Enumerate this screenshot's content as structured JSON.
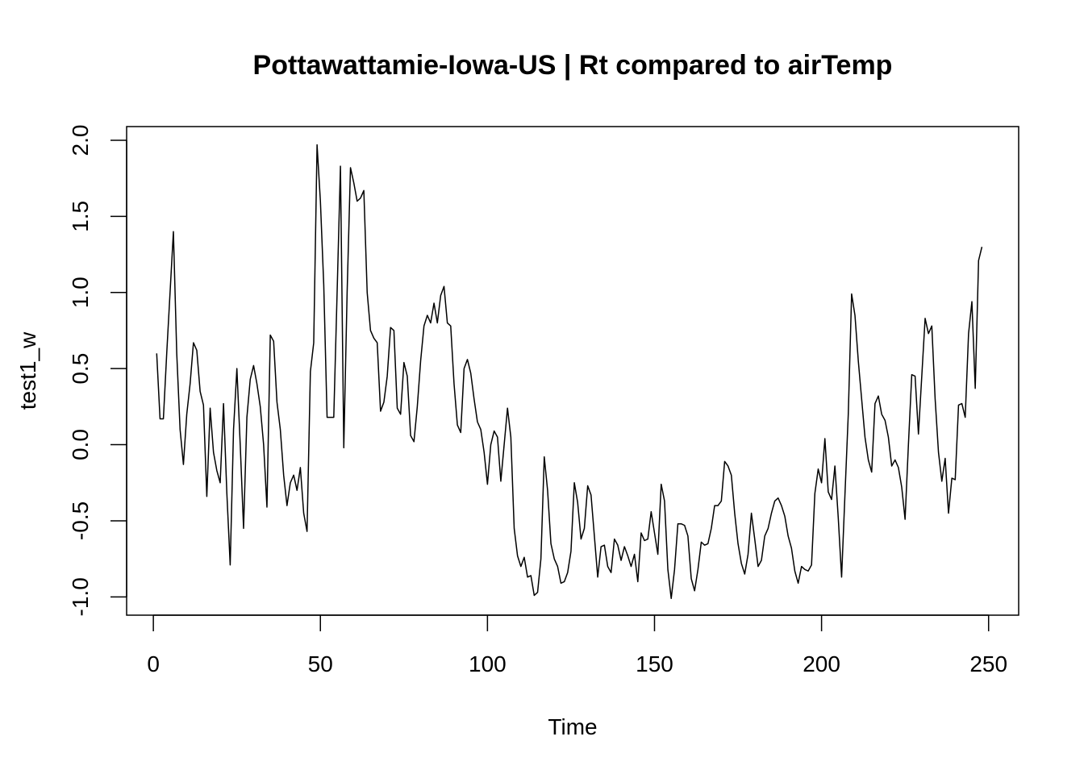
{
  "chart_data": {
    "type": "line",
    "title": "Pottawattamie-Iowa-US | Rt compared to airTemp",
    "xlabel": "Time",
    "ylabel": "test1_w",
    "xlim": [
      -8,
      259
    ],
    "ylim": [
      -1.12,
      2.09
    ],
    "xticks": [
      0,
      50,
      100,
      150,
      200,
      250
    ],
    "xtick_labels": [
      "0",
      "50",
      "100",
      "150",
      "200",
      "250"
    ],
    "yticks": [
      -1.0,
      -0.5,
      0.0,
      0.5,
      1.0,
      1.5,
      2.0
    ],
    "ytick_labels": [
      "-1.0",
      "-0.5",
      "0.0",
      "0.5",
      "1.0",
      "1.5",
      "2.0"
    ],
    "grid": false,
    "line_color": "#000000",
    "series": [
      {
        "x": [
          1,
          2,
          3,
          4,
          5,
          6,
          7,
          8,
          9,
          10,
          11,
          12,
          13,
          14,
          15,
          16,
          17,
          18,
          19,
          20,
          21,
          22,
          23,
          24,
          25,
          26,
          27,
          28,
          29,
          30,
          31,
          32,
          33,
          34,
          35,
          36,
          37,
          38,
          39,
          40,
          41,
          42,
          43,
          44,
          45,
          46,
          47,
          48,
          49,
          50,
          51,
          52,
          53,
          54,
          55,
          56,
          57,
          58,
          59,
          60,
          61,
          62,
          63,
          64,
          65,
          66,
          67,
          68,
          69,
          70,
          71,
          72,
          73,
          74,
          75,
          76,
          77,
          78,
          79,
          80,
          81,
          82,
          83,
          84,
          85,
          86,
          87,
          88,
          89,
          90,
          91,
          92,
          93,
          94,
          95,
          96,
          97,
          98,
          99,
          100,
          101,
          102,
          103,
          104,
          105,
          106,
          107,
          108,
          109,
          110,
          111,
          112,
          113,
          114,
          115,
          116,
          117,
          118,
          119,
          120,
          121,
          122,
          123,
          124,
          125,
          126,
          127,
          128,
          129,
          130,
          131,
          132,
          133,
          134,
          135,
          136,
          137,
          138,
          139,
          140,
          141,
          142,
          143,
          144,
          145,
          146,
          147,
          148,
          149,
          150,
          151,
          152,
          153,
          154,
          155,
          156,
          157,
          158,
          159,
          160,
          161,
          162,
          163,
          164,
          165,
          166,
          167,
          168,
          169,
          170,
          171,
          172,
          173,
          174,
          175,
          176,
          177,
          178,
          179,
          180,
          181,
          182,
          183,
          184,
          185,
          186,
          187,
          188,
          189,
          190,
          191,
          192,
          193,
          194,
          195,
          196,
          197,
          198,
          199,
          200,
          201,
          202,
          203,
          204,
          205,
          206,
          207,
          208,
          209,
          210,
          211,
          212,
          213,
          214,
          215,
          216,
          217,
          218,
          219,
          220,
          221,
          222,
          223,
          224,
          225,
          226,
          227,
          228,
          229,
          230,
          231,
          232,
          233,
          234,
          235,
          236,
          237,
          238,
          239,
          240,
          241,
          242,
          243,
          244,
          245,
          246,
          247,
          248
        ],
        "y": [
          0.6,
          0.17,
          0.17,
          0.6,
          1.0,
          1.4,
          0.6,
          0.1,
          -0.13,
          0.2,
          0.4,
          0.67,
          0.62,
          0.35,
          0.26,
          -0.34,
          0.24,
          -0.05,
          -0.17,
          -0.25,
          0.27,
          -0.32,
          -0.79,
          0.1,
          0.5,
          0.0,
          -0.55,
          0.18,
          0.43,
          0.52,
          0.4,
          0.25,
          0.0,
          -0.41,
          0.72,
          0.68,
          0.28,
          0.1,
          -0.2,
          -0.4,
          -0.25,
          -0.2,
          -0.3,
          -0.15,
          -0.45,
          -0.57,
          0.48,
          0.67,
          1.97,
          1.6,
          1.05,
          0.18,
          0.18,
          0.18,
          1.0,
          1.83,
          -0.02,
          1.0,
          1.82,
          1.72,
          1.6,
          1.62,
          1.67,
          1.0,
          0.75,
          0.7,
          0.67,
          0.22,
          0.28,
          0.45,
          0.77,
          0.75,
          0.24,
          0.2,
          0.54,
          0.45,
          0.06,
          0.02,
          0.25,
          0.55,
          0.78,
          0.85,
          0.8,
          0.93,
          0.8,
          0.98,
          1.04,
          0.8,
          0.78,
          0.4,
          0.13,
          0.08,
          0.5,
          0.56,
          0.47,
          0.3,
          0.15,
          0.1,
          -0.05,
          -0.26,
          0.0,
          0.09,
          0.05,
          -0.24,
          0.0,
          0.24,
          0.05,
          -0.55,
          -0.73,
          -0.8,
          -0.74,
          -0.87,
          -0.86,
          -0.99,
          -0.97,
          -0.75,
          -0.08,
          -0.3,
          -0.65,
          -0.75,
          -0.8,
          -0.91,
          -0.9,
          -0.84,
          -0.7,
          -0.25,
          -0.38,
          -0.62,
          -0.55,
          -0.27,
          -0.33,
          -0.6,
          -0.87,
          -0.67,
          -0.66,
          -0.8,
          -0.84,
          -0.62,
          -0.66,
          -0.76,
          -0.67,
          -0.73,
          -0.8,
          -0.72,
          -0.9,
          -0.58,
          -0.63,
          -0.62,
          -0.44,
          -0.58,
          -0.72,
          -0.26,
          -0.37,
          -0.82,
          -1.01,
          -0.82,
          -0.52,
          -0.52,
          -0.53,
          -0.6,
          -0.88,
          -0.96,
          -0.82,
          -0.64,
          -0.66,
          -0.65,
          -0.55,
          -0.4,
          -0.4,
          -0.37,
          -0.11,
          -0.14,
          -0.2,
          -0.45,
          -0.65,
          -0.78,
          -0.85,
          -0.72,
          -0.45,
          -0.62,
          -0.8,
          -0.76,
          -0.6,
          -0.55,
          -0.45,
          -0.37,
          -0.35,
          -0.4,
          -0.47,
          -0.6,
          -0.68,
          -0.83,
          -0.91,
          -0.8,
          -0.82,
          -0.83,
          -0.79,
          -0.32,
          -0.16,
          -0.25,
          0.04,
          -0.31,
          -0.36,
          -0.14,
          -0.48,
          -0.87,
          -0.33,
          0.2,
          0.99,
          0.85,
          0.55,
          0.3,
          0.05,
          -0.1,
          -0.18,
          0.27,
          0.32,
          0.2,
          0.16,
          0.05,
          -0.14,
          -0.1,
          -0.15,
          -0.28,
          -0.49,
          0.0,
          0.46,
          0.45,
          0.07,
          0.45,
          0.83,
          0.73,
          0.78,
          0.3,
          -0.05,
          -0.24,
          -0.09,
          -0.45,
          -0.22,
          -0.23,
          0.26,
          0.27,
          0.18,
          0.73,
          0.94,
          0.37,
          1.21,
          1.3
        ]
      }
    ]
  }
}
